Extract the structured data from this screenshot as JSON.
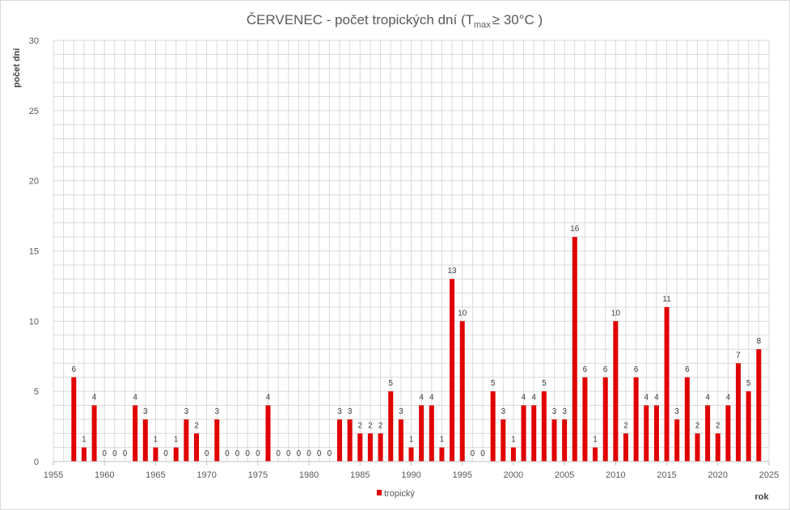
{
  "chart_data": {
    "type": "bar",
    "title": {
      "main": "ČERVENEC - počet tropických dní (T",
      "sub": "max",
      "tail": "≥ 30°C )"
    },
    "xlabel": "rok",
    "ylabel": "počet dní",
    "xlim": [
      1955,
      2025
    ],
    "x_ticks": [
      1955,
      1960,
      1965,
      1970,
      1975,
      1980,
      1985,
      1990,
      1995,
      2000,
      2005,
      2010,
      2015,
      2020,
      2025
    ],
    "ylim": [
      0,
      30
    ],
    "y_ticks": [
      0,
      5,
      10,
      15,
      20,
      25,
      30
    ],
    "grid": true,
    "legend_position": "bottom",
    "colors": {
      "bar": "#e00000",
      "grid": "#d9d9d9"
    },
    "series": [
      {
        "name": "tropický",
        "x": [
          1957,
          1958,
          1959,
          1960,
          1961,
          1962,
          1963,
          1964,
          1965,
          1966,
          1967,
          1968,
          1969,
          1970,
          1971,
          1972,
          1973,
          1974,
          1975,
          1976,
          1977,
          1978,
          1979,
          1980,
          1981,
          1982,
          1983,
          1984,
          1985,
          1986,
          1987,
          1988,
          1989,
          1990,
          1991,
          1992,
          1993,
          1994,
          1995,
          1996,
          1997,
          1998,
          1999,
          2000,
          2001,
          2002,
          2003,
          2004,
          2005,
          2006,
          2007,
          2008,
          2009,
          2010,
          2011,
          2012,
          2013,
          2014,
          2015,
          2016,
          2017,
          2018,
          2019,
          2020,
          2021,
          2022,
          2023,
          2024
        ],
        "values": [
          6,
          1,
          4,
          0,
          0,
          0,
          4,
          3,
          1,
          0,
          1,
          3,
          2,
          0,
          3,
          0,
          0,
          0,
          0,
          4,
          0,
          0,
          0,
          0,
          0,
          0,
          3,
          3,
          2,
          2,
          2,
          5,
          3,
          1,
          4,
          4,
          1,
          13,
          10,
          0,
          0,
          5,
          3,
          1,
          4,
          4,
          5,
          3,
          3,
          16,
          6,
          1,
          6,
          10,
          2,
          6,
          4,
          4,
          11,
          3,
          6,
          2,
          4,
          2,
          4,
          7,
          5,
          8
        ]
      }
    ]
  }
}
